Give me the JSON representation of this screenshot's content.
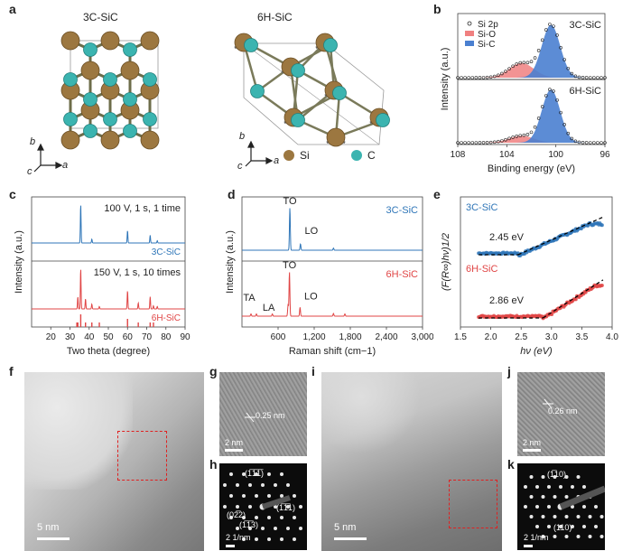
{
  "panels": {
    "a": "a",
    "b": "b",
    "c": "c",
    "d": "d",
    "e": "e",
    "f": "f",
    "g": "g",
    "h": "h",
    "i": "i",
    "j": "j",
    "k": "k"
  },
  "panel_a": {
    "title_3c": "3C-SiC",
    "title_6h": "6H-SiC",
    "axis_b": "b",
    "axis_c": "c",
    "axis_a": "a",
    "legend_si": "Si",
    "legend_c": "C",
    "colors": {
      "si": "#9c7740",
      "c": "#3bb4b0"
    }
  },
  "chart_data": [
    {
      "panel": "b",
      "type": "line",
      "xlabel": "Binding energy (eV)",
      "ylabel": "Intensity (a.u.)",
      "xlim": [
        108,
        96
      ],
      "xticks": [
        108,
        104,
        100,
        96
      ],
      "legend": [
        "Si 2p",
        "Si-O",
        "Si-C"
      ],
      "legend_placement": "top-left",
      "subplots": [
        {
          "label": "3C-SiC",
          "peaks": [
            {
              "name": "Si-O",
              "center": 102.8,
              "height": 0.25
            },
            {
              "name": "Si-C",
              "center": 100.4,
              "height": 0.9
            }
          ]
        },
        {
          "label": "6H-SiC",
          "peaks": [
            {
              "name": "Si-O",
              "center": 102.8,
              "height": 0.12
            },
            {
              "name": "Si-C",
              "center": 100.4,
              "height": 0.92
            }
          ]
        }
      ],
      "colors": {
        "Si-O": "#f08080",
        "Si-C": "#4a7fd0"
      }
    },
    {
      "panel": "c",
      "type": "line",
      "xlabel": "Two theta (degree)",
      "ylabel": "Intensity (a.u.)",
      "xlim": [
        10,
        90
      ],
      "xticks": [
        20,
        30,
        40,
        50,
        60,
        70,
        80,
        90
      ],
      "series": [
        {
          "name": "3C-SiC",
          "condition": "100 V, 1 s, 1 time",
          "peaks": [
            [
              35.6,
              1.0
            ],
            [
              41.4,
              0.1
            ],
            [
              60.0,
              0.32
            ],
            [
              71.8,
              0.2
            ],
            [
              75.5,
              0.06
            ]
          ]
        },
        {
          "name": "6H-SiC",
          "condition": "150 V, 1 s, 10 times",
          "peaks": [
            [
              34.1,
              0.3
            ],
            [
              35.6,
              1.0
            ],
            [
              38.1,
              0.25
            ],
            [
              41.4,
              0.12
            ],
            [
              45.3,
              0.06
            ],
            [
              60.0,
              0.45
            ],
            [
              65.6,
              0.15
            ],
            [
              71.8,
              0.3
            ],
            [
              73.5,
              0.08
            ],
            [
              75.5,
              0.06
            ]
          ]
        }
      ],
      "reference_sticks_6h": [
        33.6,
        34.1,
        35.6,
        38.1,
        41.4,
        45.3,
        60.0,
        65.6,
        71.8,
        73.5
      ],
      "colors": {
        "3C-SiC": "#2f76b8",
        "6H-SiC": "#e04545"
      }
    },
    {
      "panel": "d",
      "type": "line",
      "xlabel": "Raman shift (cm−1)",
      "ylabel": "Intensity (a.u.)",
      "xlim": [
        0,
        3000
      ],
      "xticks": [
        600,
        1200,
        1800,
        2400,
        3000
      ],
      "xticklabels": [
        "600",
        "1,200",
        "1,800",
        "2,400",
        "3,000"
      ],
      "series": [
        {
          "name": "3C-SiC",
          "peaks": [
            [
              796,
              1.0
            ],
            [
              972,
              0.15
            ],
            [
              1520,
              0.05
            ]
          ],
          "labels": [
            {
              "text": "TO",
              "x": 796
            },
            {
              "text": "LO",
              "x": 972
            }
          ]
        },
        {
          "name": "6H-SiC",
          "peaks": [
            [
              150,
              0.05
            ],
            [
              240,
              0.05
            ],
            [
              505,
              0.05
            ],
            [
              766,
              0.25
            ],
            [
              789,
              1.0
            ],
            [
              965,
              0.2
            ],
            [
              1520,
              0.06
            ],
            [
              1710,
              0.05
            ]
          ],
          "labels": [
            {
              "text": "TA",
              "x": 150
            },
            {
              "text": "LA",
              "x": 505
            },
            {
              "text": "TO",
              "x": 789
            },
            {
              "text": "LO",
              "x": 965
            }
          ]
        }
      ],
      "colors": {
        "3C-SiC": "#2f76b8",
        "6H-SiC": "#e04545"
      }
    },
    {
      "panel": "e",
      "type": "scatter",
      "xlabel": "hν (eV)",
      "ylabel": "(F(R∞)hν)1/2",
      "xlim": [
        1.5,
        4.0
      ],
      "xticks": [
        1.5,
        2.0,
        2.5,
        3.0,
        3.5,
        4.0
      ],
      "series": [
        {
          "name": "3C-SiC",
          "band_gap": "2.45 eV",
          "onset_x": 2.45
        },
        {
          "name": "6H-SiC",
          "band_gap": "2.86 eV",
          "onset_x": 2.86
        }
      ],
      "colors": {
        "3C-SiC": "#2f76b8",
        "6H-SiC": "#e04545"
      }
    }
  ],
  "tem": {
    "f_scale": "5 nm",
    "g_spacing": "0.25 nm",
    "g_scale": "2 nm",
    "h_scale": "2 1/nm",
    "h_idx1": "(1̅1̅1̅)",
    "h_idx2": "(1̅1̅1)",
    "h_idx3": "(02̅2)",
    "h_idx4": "(1̅1̅3)",
    "i_scale": "5 nm",
    "j_spacing": "0.26 nm",
    "j_scale": "2 nm",
    "k_idx1": "(1̅10)",
    "k_idx2": "(110)",
    "k_scale": "2 1/nm"
  }
}
